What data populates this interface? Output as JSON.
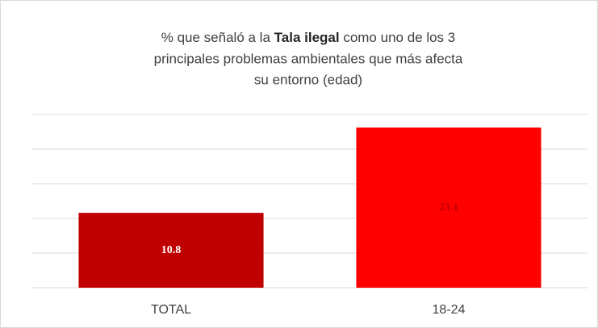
{
  "chart_data": {
    "type": "bar",
    "title": [
      [
        "% que señaló a la ",
        "Tala ilegal",
        " como uno de los 3"
      ],
      [
        "principales problemas ambientales que más afecta"
      ],
      [
        "su entorno (edad)"
      ]
    ],
    "categories": [
      "TOTAL",
      "18-24"
    ],
    "values": [
      10.8,
      23.1
    ],
    "colors": [
      "#c00000",
      "#ff0000"
    ],
    "label_colors": [
      "#ffffff",
      "#c00000"
    ],
    "ylim": [
      0,
      25
    ],
    "yticks": [
      0,
      5,
      10,
      15,
      20,
      25
    ],
    "grid": true
  }
}
